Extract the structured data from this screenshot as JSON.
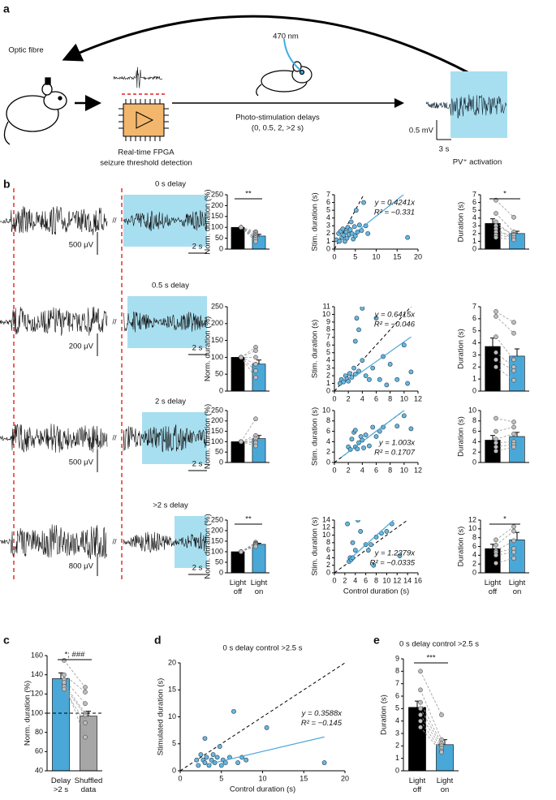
{
  "panel_labels": [
    "a",
    "b",
    "c",
    "d",
    "e"
  ],
  "panel_a": {
    "optic_fibre": "Optic fibre",
    "wavelength": "470 nm",
    "fpga_line1": "Real-time FPGA",
    "fpga_line2": "seizure threshold detection",
    "delays_line1": "Photo-stimulation delays",
    "delays_line2": "(0, 0.5, 2, >2 s)",
    "amp_scale": "0.5 mV",
    "time_scale": "3 s",
    "activation": "PV⁺ activation"
  },
  "panel_b": {
    "rows": [
      {
        "delay": "0 s delay",
        "amp_scale": "500 μV",
        "time_scale": "2 s"
      },
      {
        "delay": "0.5 s delay",
        "amp_scale": "200 μV",
        "time_scale": "2 s"
      },
      {
        "delay": "2 s delay",
        "amp_scale": "500 μV",
        "time_scale": "2 s"
      },
      {
        "delay": ">2 s delay",
        "amp_scale": "800 μV",
        "time_scale": "2 s"
      }
    ]
  },
  "chart_data": [
    {
      "type": "bar",
      "ylabel": "Norm. duration (%)",
      "categories": [
        null,
        null
      ],
      "values": [
        100,
        60
      ],
      "errors": [
        0,
        8
      ],
      "colors": [
        "#000000",
        "#4aa8d8"
      ],
      "points": [
        [
          100,
          80
        ],
        [
          100,
          75
        ],
        [
          100,
          68
        ],
        [
          100,
          62
        ],
        [
          100,
          58
        ],
        [
          100,
          52
        ],
        [
          100,
          45
        ],
        [
          100,
          35
        ]
      ],
      "significance": "**",
      "ylim": [
        0,
        250
      ],
      "yticks": [
        0,
        50,
        100,
        150,
        200,
        250
      ]
    },
    {
      "type": "scatter",
      "ylabel": "Stim. duration (s)",
      "color": "#6bb7dd",
      "fit_color": "#4aa8d8",
      "identity": true,
      "x": [
        0.5,
        1,
        1.2,
        1.5,
        1.8,
        2,
        2.2,
        2.5,
        2.8,
        3,
        3.2,
        3.5,
        3.8,
        4,
        4.2,
        4.5,
        4.8,
        5,
        5.2,
        5.5,
        6,
        6.5,
        7,
        7.5,
        8,
        17.5
      ],
      "y": [
        1.2,
        2,
        1,
        2.3,
        1.5,
        2.6,
        1.8,
        1,
        2.2,
        1.4,
        2.8,
        1.9,
        2.5,
        3.5,
        2,
        1.3,
        2.9,
        1.7,
        5,
        2.2,
        3.1,
        2.4,
        6,
        3,
        2,
        1.5
      ],
      "slope": 0.4241,
      "fit_range": [
        3,
        17.5
      ],
      "equation": "y = 0.4241x",
      "r2": "R² = −0.331",
      "annotation_position": "upper right",
      "xlim": [
        0,
        20
      ],
      "ylim": [
        0,
        7
      ],
      "xticks": [
        0,
        5,
        10,
        15,
        20
      ],
      "yticks": [
        0,
        1,
        2,
        3,
        4,
        5,
        6,
        7
      ]
    },
    {
      "type": "bar",
      "ylabel": "Duration (s)",
      "categories": [
        null,
        null
      ],
      "values": [
        3.3,
        2.0
      ],
      "errors": [
        0.6,
        0.3
      ],
      "colors": [
        "#000000",
        "#4aa8d8"
      ],
      "points": [
        [
          6.3,
          4.1
        ],
        [
          4.6,
          2.2
        ],
        [
          3.5,
          1.6
        ],
        [
          3,
          1.9
        ],
        [
          2.6,
          1.3
        ],
        [
          2.2,
          1.8
        ],
        [
          1.8,
          1.5
        ],
        [
          1.5,
          1.2
        ]
      ],
      "significance": "*",
      "ylim": [
        0,
        7
      ],
      "yticks": [
        0,
        1,
        2,
        3,
        4,
        5,
        6,
        7
      ]
    },
    {
      "type": "bar",
      "ylabel": "Norm. duration (%)",
      "categories": [
        null,
        null
      ],
      "values": [
        100,
        80
      ],
      "errors": [
        0,
        12
      ],
      "colors": [
        "#000000",
        "#4aa8d8"
      ],
      "points": [
        [
          100,
          130
        ],
        [
          100,
          120
        ],
        [
          100,
          100
        ],
        [
          100,
          80
        ],
        [
          100,
          60
        ],
        [
          100,
          40
        ]
      ],
      "ylim": [
        0,
        250
      ],
      "yticks": [
        0,
        50,
        100,
        150,
        200,
        250
      ]
    },
    {
      "type": "scatter",
      "ylabel": "Stim. duration (s)",
      "color": "#6bb7dd",
      "fit_color": "#4aa8d8",
      "identity": true,
      "x": [
        0.8,
        1,
        1.3,
        1.6,
        1.8,
        2,
        2.2,
        2.5,
        2.8,
        3,
        3,
        3.2,
        3.5,
        3.5,
        4,
        4,
        4.5,
        5,
        5.5,
        6,
        6.5,
        7,
        7.5,
        8,
        9,
        10,
        10.5,
        11
      ],
      "y": [
        1,
        1.5,
        1.2,
        2,
        1.6,
        1.3,
        2.3,
        1.8,
        3,
        2.2,
        6.5,
        9.5,
        8,
        2.6,
        4,
        10.8,
        2,
        1.5,
        3,
        9.5,
        1.5,
        4.5,
        0.8,
        3.5,
        1.5,
        6,
        1,
        2.5
      ],
      "slope": 0.6415,
      "fit_range": [
        3,
        11
      ],
      "equation": "y = 0.6415x",
      "r2": "R² = −0.046",
      "annotation_position": "upper right",
      "xlim": [
        0,
        12
      ],
      "ylim": [
        0,
        11
      ],
      "xticks": [
        0,
        2,
        4,
        6,
        8,
        10,
        12
      ],
      "yticks": [
        0,
        1,
        2,
        3,
        4,
        5,
        6,
        7,
        8,
        9,
        10,
        11
      ]
    },
    {
      "type": "bar",
      "ylabel": "Duration (s)",
      "categories": [
        null,
        null
      ],
      "values": [
        3.7,
        2.9
      ],
      "errors": [
        0.7,
        0.6
      ],
      "colors": [
        "#000000",
        "#4aa8d8"
      ],
      "points": [
        [
          6.6,
          5.7
        ],
        [
          6.2,
          4.8
        ],
        [
          4.5,
          2.6
        ],
        [
          3.2,
          2.0
        ],
        [
          2.6,
          1.7
        ],
        [
          2,
          0.9
        ]
      ],
      "ylim": [
        0,
        7
      ],
      "yticks": [
        0,
        1,
        2,
        3,
        4,
        5,
        6,
        7
      ]
    },
    {
      "type": "bar",
      "ylabel": "Norm. duration (%)",
      "categories": [
        null,
        null
      ],
      "values": [
        100,
        115
      ],
      "errors": [
        0,
        15
      ],
      "colors": [
        "#000000",
        "#4aa8d8"
      ],
      "points": [
        [
          100,
          210
        ],
        [
          100,
          130
        ],
        [
          100,
          115
        ],
        [
          100,
          100
        ],
        [
          100,
          95
        ],
        [
          100,
          80
        ]
      ],
      "ylim": [
        0,
        250
      ],
      "yticks": [
        0,
        50,
        100,
        150,
        200,
        250
      ]
    },
    {
      "type": "scatter",
      "ylabel": "Stim. duration (s)",
      "color": "#6bb7dd",
      "fit_color": "#4aa8d8",
      "identity": true,
      "x": [
        2,
        2.3,
        2.5,
        2.8,
        3,
        3,
        3.3,
        3.5,
        3.8,
        4,
        4.2,
        4.5,
        5,
        5.5,
        6,
        6.5,
        7,
        9,
        10,
        11
      ],
      "y": [
        3,
        2.5,
        4.5,
        5.8,
        3,
        6.2,
        2.6,
        3.8,
        5,
        4.3,
        2.8,
        5.3,
        3.2,
        6.8,
        5,
        6,
        6.8,
        7,
        9,
        6.5
      ],
      "slope": 1.003,
      "fit_range": [
        1,
        11
      ],
      "equation": "y = 1.003x",
      "r2": "R² = 0.1707",
      "annotation_position": "lower right",
      "xlim": [
        0,
        12
      ],
      "ylim": [
        0,
        10
      ],
      "xticks": [
        0,
        2,
        4,
        6,
        8,
        10,
        12
      ],
      "yticks": [
        0,
        2,
        4,
        6,
        8,
        10
      ]
    },
    {
      "type": "bar",
      "ylabel": "Duration (s)",
      "categories": [
        null,
        null
      ],
      "values": [
        4.3,
        5.0
      ],
      "errors": [
        0.9,
        0.8
      ],
      "colors": [
        "#000000",
        "#4aa8d8"
      ],
      "points": [
        [
          8.5,
          7.8
        ],
        [
          6,
          6.8
        ],
        [
          4.5,
          5.5
        ],
        [
          3.8,
          4
        ],
        [
          3,
          3.5
        ],
        [
          2.2,
          3
        ]
      ],
      "ylim": [
        0,
        10
      ],
      "yticks": [
        0,
        2,
        4,
        6,
        8,
        10
      ]
    },
    {
      "type": "bar",
      "ylabel": "Norm. duration (%)",
      "categories": [
        "Light\noff",
        "Light\non"
      ],
      "values": [
        100,
        135
      ],
      "errors": [
        0,
        5
      ],
      "colors": [
        "#000000",
        "#4aa8d8"
      ],
      "points": [
        [
          100,
          145
        ],
        [
          100,
          140
        ],
        [
          100,
          138
        ],
        [
          100,
          135
        ],
        [
          100,
          130
        ],
        [
          100,
          125
        ]
      ],
      "significance": "**",
      "ylim": [
        0,
        250
      ],
      "yticks": [
        0,
        50,
        100,
        150,
        200,
        250
      ]
    },
    {
      "type": "scatter",
      "ylabel": "Stim. duration (s)",
      "xlabel": "Control duration (s)",
      "color": "#6bb7dd",
      "fit_color": "#4aa8d8",
      "identity": true,
      "x": [
        2.5,
        2.8,
        3,
        3.2,
        3.5,
        3.5,
        4,
        4.5,
        5,
        6,
        6.5,
        7,
        7.5,
        8,
        9,
        10,
        11,
        12.5
      ],
      "y": [
        13,
        3,
        4,
        3.5,
        4,
        8,
        6,
        14,
        11,
        7.5,
        6,
        7.5,
        2,
        9.5,
        10.5,
        11,
        13,
        4.5
      ],
      "slope": 1.2379,
      "fit_range": [
        3,
        11.5
      ],
      "equation": "y = 1.2379x",
      "r2": "R² = −0.0335",
      "annotation_position": "lower right",
      "xlim": [
        0,
        16
      ],
      "ylim": [
        0,
        14
      ],
      "xticks": [
        0,
        2,
        4,
        6,
        8,
        10,
        12,
        14,
        16
      ],
      "yticks": [
        0,
        2,
        4,
        6,
        8,
        10,
        12,
        14
      ]
    },
    {
      "type": "bar",
      "ylabel": "Duration (s)",
      "categories": [
        "Light\noff",
        "Light\non"
      ],
      "values": [
        5.5,
        7.5
      ],
      "errors": [
        1.0,
        1.7
      ],
      "colors": [
        "#000000",
        "#4aa8d8"
      ],
      "points": [
        [
          7.5,
          10.5
        ],
        [
          6.3,
          9.5
        ],
        [
          5,
          7.3
        ],
        [
          4.6,
          5.5
        ],
        [
          4,
          4.7
        ],
        [
          2.2,
          3.3
        ]
      ],
      "significance": "*",
      "ylim": [
        0,
        12
      ],
      "yticks": [
        0,
        2,
        4,
        6,
        8,
        10,
        12
      ]
    },
    {
      "type": "bar",
      "ylabel": "Norm. duration (%)",
      "categories": [
        "Delay\n>2 s",
        "Shuffled\ndata"
      ],
      "values": [
        136,
        97
      ],
      "errors": [
        6,
        5
      ],
      "colors": [
        "#4aa8d8",
        "#a6a6a6"
      ],
      "points": [
        [
          155,
          127
        ],
        [
          140,
          122
        ],
        [
          135,
          110
        ],
        [
          130,
          100
        ],
        [
          128,
          98
        ],
        [
          125,
          90
        ],
        [
          132,
          75
        ]
      ],
      "significance": "*; ###",
      "refline": 100,
      "ylim": [
        40,
        160
      ],
      "yticks": [
        40,
        60,
        80,
        100,
        120,
        140,
        160
      ]
    },
    {
      "type": "scatter",
      "title": "0 s delay control >2.5 s",
      "ylabel": "Stimulated duration (s)",
      "xlabel": "Control duration (s)",
      "color": "#6bb7dd",
      "fit_color": "#4aa8d8",
      "identity": true,
      "x": [
        2,
        2.2,
        2.5,
        2.8,
        3,
        3,
        3.2,
        3.5,
        3.8,
        4,
        4.2,
        4.5,
        4.8,
        5,
        5.2,
        5.5,
        6,
        6.5,
        7,
        7.5,
        8,
        10.5,
        17.5
      ],
      "y": [
        2,
        1,
        3,
        2,
        1.5,
        6,
        2.5,
        1,
        2,
        3,
        1.5,
        2.5,
        4.5,
        1,
        2,
        1.5,
        2.5,
        11,
        1.5,
        2.5,
        2,
        8,
        1.5
      ],
      "slope": 0.3588,
      "fit_range": [
        3.5,
        17.5
      ],
      "equation": "y = 0.3588x",
      "r2": "R² = −0.145",
      "annotation_position": "center right",
      "xlim": [
        0,
        20
      ],
      "ylim": [
        0,
        20
      ],
      "xticks": [
        0,
        5,
        10,
        15,
        20
      ],
      "yticks": [
        0,
        5,
        10,
        15,
        20
      ]
    },
    {
      "type": "bar",
      "title": "0 s delay control >2.5 s",
      "ylabel": "Duration (s)",
      "categories": [
        "Light\noff",
        "Light\non"
      ],
      "values": [
        5.1,
        2.1
      ],
      "errors": [
        0.5,
        0.4
      ],
      "colors": [
        "#000000",
        "#4aa8d8"
      ],
      "points": [
        [
          8,
          4.5
        ],
        [
          6.5,
          2.5
        ],
        [
          5.5,
          2.2
        ],
        [
          5,
          2
        ],
        [
          4.5,
          1.8
        ],
        [
          4,
          1.6
        ],
        [
          3.5,
          1.5
        ]
      ],
      "significance": "***",
      "ylim": [
        0,
        9
      ],
      "yticks": [
        0,
        1,
        2,
        3,
        4,
        5,
        6,
        7,
        8,
        9
      ]
    }
  ]
}
